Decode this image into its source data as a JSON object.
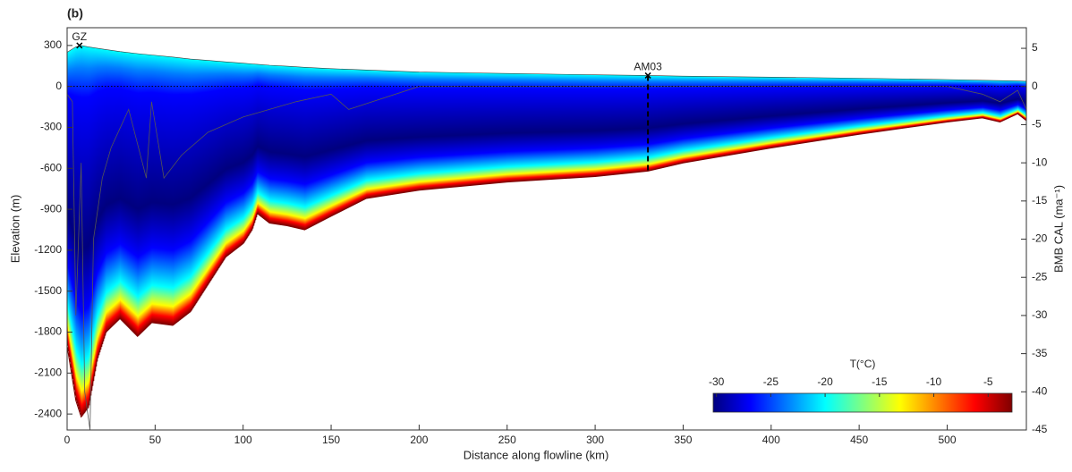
{
  "chart_data": {
    "type": "section",
    "panel_label": "(b)",
    "xlabel": "Distance along flowline (km)",
    "ylabel": "Elevation (m)",
    "y2label": "BMB  CAL (ma⁻¹)",
    "xlim": [
      0,
      545
    ],
    "xticks": [
      0,
      50,
      100,
      150,
      200,
      250,
      300,
      350,
      400,
      450,
      500
    ],
    "ylim": [
      -2517,
      430
    ],
    "yticks": [
      300,
      0,
      -300,
      -600,
      -900,
      -1200,
      -1500,
      -1800,
      -2100,
      -2400
    ],
    "y2lim": [
      -45,
      7.7
    ],
    "y2ticks": [
      5,
      0,
      -5,
      -10,
      -15,
      -20,
      -25,
      -30,
      -35,
      -40,
      -45
    ],
    "reference_line": 0,
    "series": [
      {
        "color": "#3a3a3a",
        "x": [
          0,
          5,
          8,
          12,
          17,
          22,
          30,
          40,
          48,
          60,
          70,
          80,
          90,
          100,
          105,
          108,
          115,
          125,
          135,
          150,
          170,
          200,
          250,
          300,
          330,
          350,
          400,
          450,
          500,
          520,
          530,
          540,
          545
        ],
        "values": [
          250,
          290,
          300,
          290,
          280,
          270,
          255,
          240,
          230,
          215,
          200,
          190,
          180,
          170,
          165,
          162,
          155,
          148,
          140,
          130,
          120,
          105,
          95,
          85,
          80,
          75,
          68,
          60,
          50,
          45,
          42,
          40,
          38
        ]
      },
      {
        "color": "#7f0000",
        "x": [
          0,
          5,
          8,
          12,
          17,
          22,
          30,
          40,
          48,
          60,
          70,
          80,
          90,
          100,
          105,
          108,
          115,
          125,
          135,
          150,
          170,
          200,
          250,
          300,
          330,
          350,
          400,
          450,
          500,
          520,
          530,
          540,
          545
        ],
        "values": [
          -1900,
          -2300,
          -2420,
          -2350,
          -2000,
          -1800,
          -1700,
          -1830,
          -1730,
          -1750,
          -1650,
          -1450,
          -1250,
          -1150,
          -1050,
          -930,
          -1000,
          -1020,
          -1050,
          -950,
          -820,
          -760,
          -700,
          -660,
          -620,
          -560,
          -450,
          -350,
          -260,
          -230,
          -260,
          -200,
          -250
        ]
      },
      {
        "color": "#555555",
        "axis": "y2",
        "x": [
          0,
          3,
          5,
          8,
          10,
          13,
          15,
          20,
          25,
          35,
          45,
          48,
          55,
          65,
          80,
          100,
          130,
          150,
          160,
          200,
          300,
          400,
          500,
          520,
          530,
          540,
          545
        ],
        "values": [
          -1,
          -2,
          -30,
          -10,
          -40,
          -45,
          -20,
          -12,
          -8,
          -3,
          -12,
          -2,
          -12,
          -9,
          -6,
          -4,
          -2,
          -1,
          -3,
          0,
          0,
          0,
          0,
          -1,
          -2,
          -0.5,
          -3
        ]
      }
    ],
    "annotations": [
      {
        "text": "GZ",
        "x": 7,
        "y": 300
      },
      {
        "text": "AM03",
        "x": 330,
        "y": 80,
        "base": -630
      }
    ],
    "colorbar": {
      "title": "T(°C)",
      "clim": [
        -30.3,
        -2.8
      ],
      "ticks": [
        -30,
        -25,
        -20,
        -15,
        -10,
        -5
      ],
      "colormap": [
        "#00007f",
        "#0000ff",
        "#0080ff",
        "#00ffff",
        "#80ff80",
        "#ffff00",
        "#ff8000",
        "#ff0000",
        "#7f0000"
      ]
    }
  }
}
